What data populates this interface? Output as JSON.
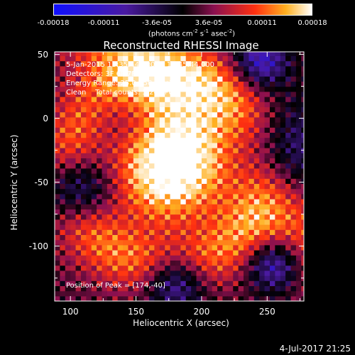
{
  "chart_data": {
    "type": "heatmap",
    "title": "Reconstructed RHESSI Image",
    "xlabel": "Heliocentric X (arcsec)",
    "ylabel": "Heliocentric Y (arcsec)",
    "xlim": [
      88,
      278
    ],
    "ylim": [
      -143,
      52
    ],
    "x_ticks": [
      100,
      150,
      200,
      250
    ],
    "y_ticks": [
      50,
      0,
      -50,
      -100
    ],
    "colorbar": {
      "range": [
        -0.00018,
        0.00018
      ],
      "ticks": [
        -0.00018,
        -0.00011,
        -3.6e-05,
        3.6e-05,
        0.00011,
        0.00018
      ],
      "tick_labels": [
        "-0.00018",
        "-0.00011",
        "-3.6e-05",
        "3.6e-05",
        "0.00011",
        "0.00018"
      ],
      "units_main": "(photons cm",
      "units_sup1": "-2",
      "units_mid1": " s",
      "units_sup2": "-1",
      "units_mid2": " asec",
      "units_sup3": "-2",
      "units_end": ")"
    },
    "annotations": {
      "time_range": "5-Jan-2015 13:35:44.000 to 13:45:44.000",
      "detectors": "Detectors: 3F 6F 7F 9F, Att 0",
      "energy": "Energy Range: 25.0 - 50.0 keV",
      "clean": "Clean    Total counts: 5.24E+03",
      "peak": "Position of Peak = [174,-40]"
    },
    "peak": {
      "x": 174,
      "y": -40
    },
    "colors": {
      "low": "#1010ff",
      "neutral": "#000000",
      "high": "#ffffff",
      "ring": "#ff8800",
      "negative_region": "#5a3aa0"
    }
  },
  "timestamp": "4-Jul-2017 21:25"
}
